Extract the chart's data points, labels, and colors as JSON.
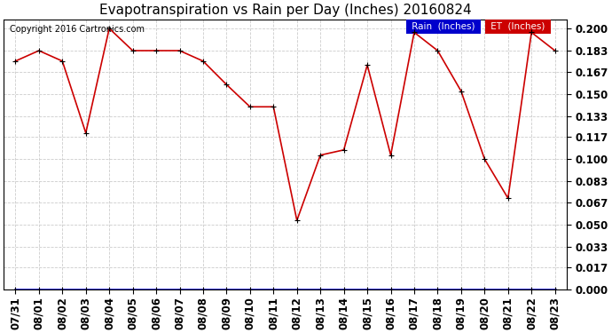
{
  "title": "Evapotranspiration vs Rain per Day (Inches) 20160824",
  "copyright": "Copyright 2016 Cartronics.com",
  "background_color": "#ffffff",
  "x_labels": [
    "07/31",
    "08/01",
    "08/02",
    "08/03",
    "08/04",
    "08/05",
    "08/06",
    "08/07",
    "08/08",
    "08/09",
    "08/10",
    "08/11",
    "08/12",
    "08/13",
    "08/14",
    "08/15",
    "08/16",
    "08/17",
    "08/18",
    "08/19",
    "08/20",
    "08/21",
    "08/22",
    "08/23"
  ],
  "et_values": [
    0.175,
    0.183,
    0.175,
    0.12,
    0.2,
    0.183,
    0.183,
    0.183,
    0.175,
    0.157,
    0.14,
    0.14,
    0.053,
    0.103,
    0.107,
    0.172,
    0.103,
    0.197,
    0.183,
    0.152,
    0.1,
    0.07,
    0.197,
    0.183
  ],
  "rain_values": [
    0.0,
    0.0,
    0.0,
    0.0,
    0.0,
    0.0,
    0.0,
    0.0,
    0.0,
    0.0,
    0.0,
    0.0,
    0.0,
    0.0,
    0.0,
    0.0,
    0.0,
    0.0,
    0.0,
    0.0,
    0.0,
    0.0,
    0.0,
    0.0
  ],
  "et_color": "#cc0000",
  "rain_color": "#0000cc",
  "grid_color": "#cccccc",
  "ylim_min": 0.0,
  "ylim_max": 0.207,
  "yticks": [
    0.0,
    0.017,
    0.033,
    0.05,
    0.067,
    0.083,
    0.1,
    0.117,
    0.133,
    0.15,
    0.167,
    0.183,
    0.2
  ],
  "title_fontsize": 11,
  "tick_fontsize": 8.5,
  "legend_rain_bg": "#0000cc",
  "legend_et_bg": "#cc0000",
  "fig_width": 6.9,
  "fig_height": 3.75
}
